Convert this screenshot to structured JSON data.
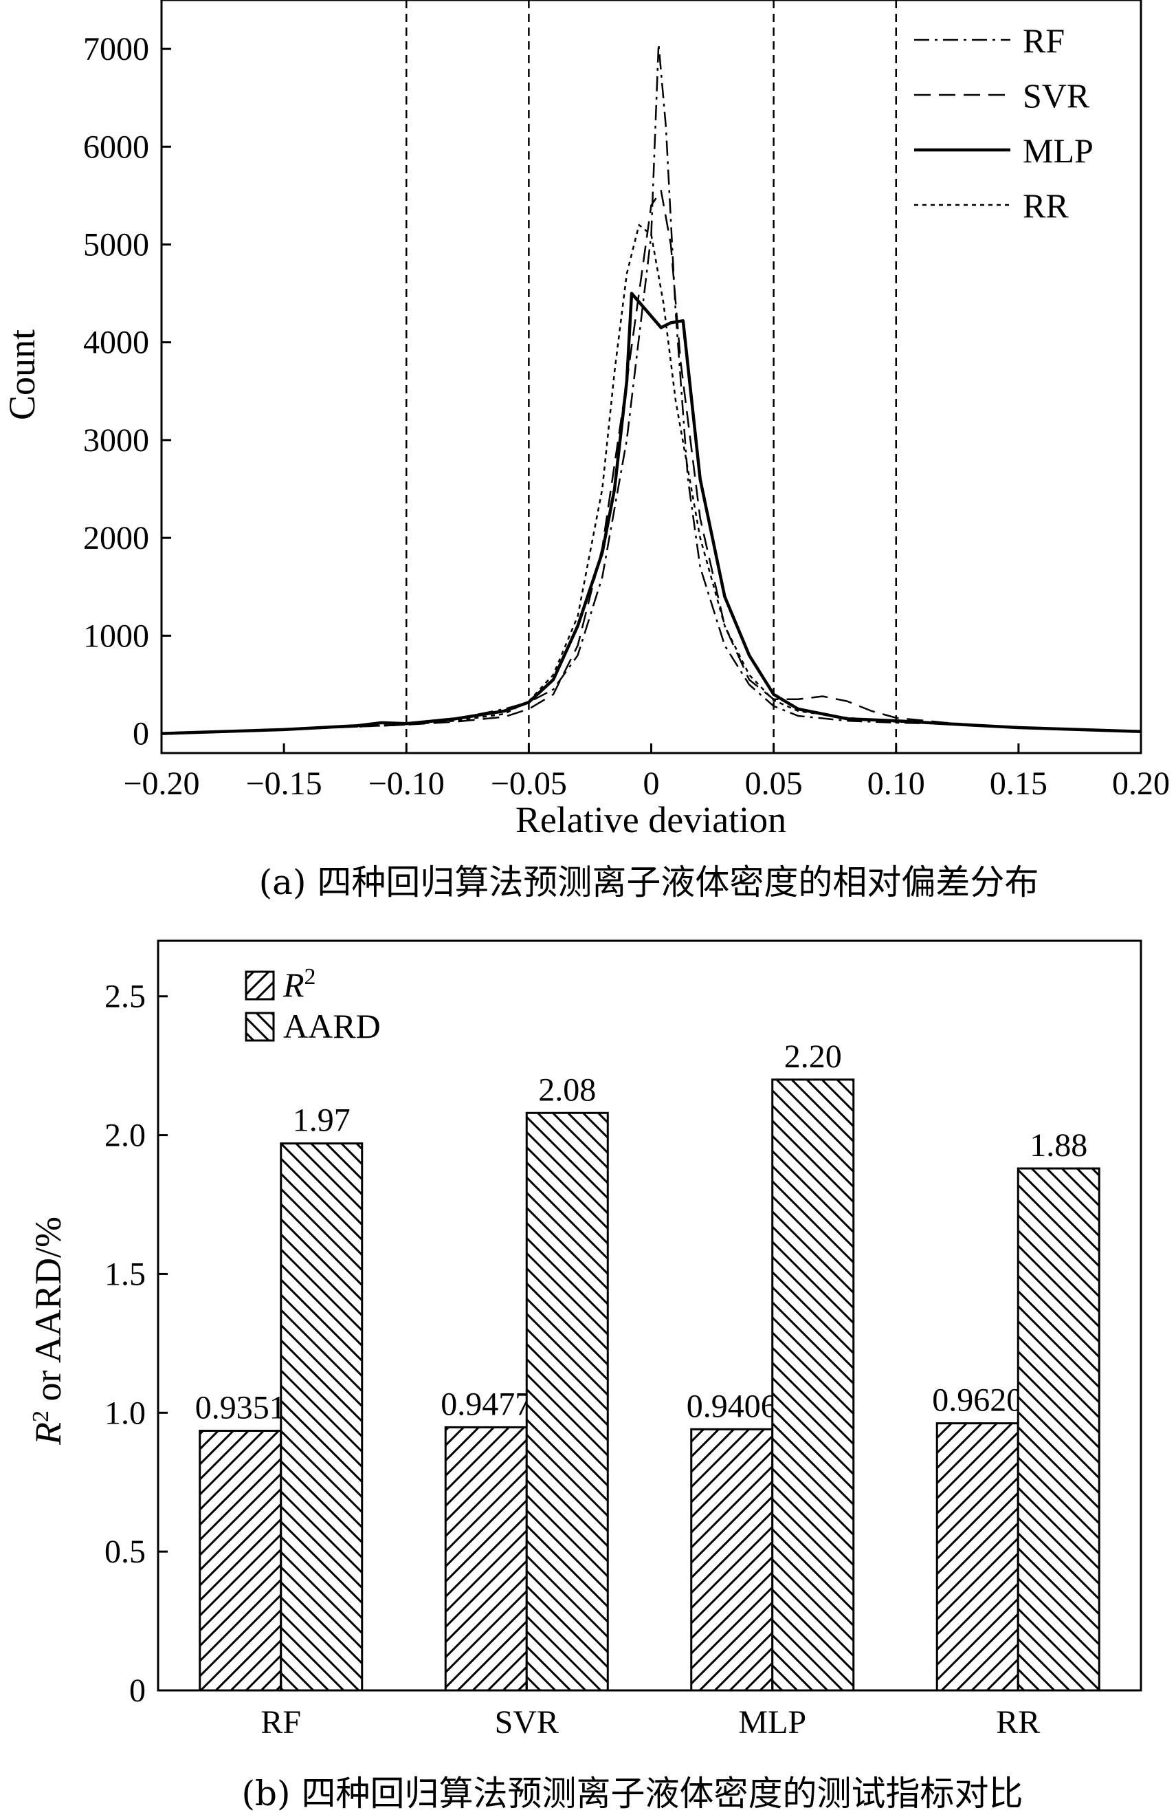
{
  "chart_data": [
    {
      "type": "line",
      "title": "",
      "xlabel": "Relative deviation",
      "ylabel": "Count",
      "xlim": [
        -0.2,
        0.2
      ],
      "ylim": [
        -200,
        7500
      ],
      "xticks": [
        -0.2,
        -0.15,
        -0.1,
        -0.05,
        0,
        0.05,
        0.1,
        0.15,
        0.2
      ],
      "xtick_labels": [
        "−0.20",
        "−0.15",
        "−0.10",
        "−0.05",
        "0",
        "0.05",
        "0.10",
        "0.15",
        "0.20"
      ],
      "yticks": [
        0,
        1000,
        2000,
        3000,
        4000,
        5000,
        6000,
        7000
      ],
      "ytick_labels": [
        "0",
        "1000",
        "2000",
        "3000",
        "4000",
        "5000",
        "6000",
        "7000"
      ],
      "vlines": [
        -0.1,
        -0.05,
        0.05,
        0.1
      ],
      "grid": false,
      "legend_position": "top-right",
      "caption": "(a) 四种回归算法预测离子液体密度的相对偏差分布",
      "series": [
        {
          "name": "RF",
          "style": "dash-dot",
          "x": [
            -0.2,
            -0.15,
            -0.12,
            -0.1,
            -0.08,
            -0.06,
            -0.05,
            -0.04,
            -0.03,
            -0.02,
            -0.01,
            0,
            0.003,
            0.006,
            0.01,
            0.015,
            0.02,
            0.03,
            0.04,
            0.05,
            0.06,
            0.08,
            0.1,
            0.12,
            0.15,
            0.2
          ],
          "y": [
            0,
            40,
            70,
            100,
            150,
            250,
            320,
            450,
            800,
            1600,
            3000,
            5100,
            7050,
            6200,
            4300,
            2600,
            1700,
            900,
            500,
            280,
            180,
            130,
            110,
            100,
            60,
            20
          ]
        },
        {
          "name": "SVR",
          "style": "dashed",
          "x": [
            -0.2,
            -0.15,
            -0.12,
            -0.1,
            -0.08,
            -0.06,
            -0.05,
            -0.04,
            -0.03,
            -0.02,
            -0.01,
            0,
            0.004,
            0.008,
            0.012,
            0.02,
            0.03,
            0.04,
            0.05,
            0.06,
            0.07,
            0.08,
            0.09,
            0.1,
            0.12,
            0.15,
            0.2
          ],
          "y": [
            0,
            40,
            70,
            90,
            120,
            170,
            250,
            400,
            900,
            1900,
            3600,
            5400,
            5550,
            5000,
            3800,
            2200,
            1100,
            550,
            350,
            350,
            380,
            330,
            230,
            160,
            110,
            60,
            20
          ]
        },
        {
          "name": "MLP",
          "style": "solid",
          "x": [
            -0.2,
            -0.15,
            -0.12,
            -0.11,
            -0.1,
            -0.08,
            -0.06,
            -0.05,
            -0.04,
            -0.03,
            -0.02,
            -0.015,
            -0.01,
            -0.008,
            0.004,
            0.008,
            0.013,
            0.02,
            0.03,
            0.04,
            0.05,
            0.06,
            0.08,
            0.1,
            0.12,
            0.15,
            0.2
          ],
          "y": [
            0,
            40,
            80,
            110,
            100,
            150,
            230,
            320,
            550,
            1100,
            1850,
            2500,
            3600,
            4500,
            4150,
            4200,
            4220,
            2600,
            1400,
            800,
            400,
            250,
            150,
            130,
            100,
            60,
            20
          ]
        },
        {
          "name": "RR",
          "style": "dotted",
          "x": [
            -0.2,
            -0.15,
            -0.12,
            -0.1,
            -0.08,
            -0.06,
            -0.05,
            -0.04,
            -0.03,
            -0.02,
            -0.015,
            -0.01,
            -0.005,
            0,
            0.005,
            0.01,
            0.02,
            0.03,
            0.04,
            0.05,
            0.06,
            0.08,
            0.1,
            0.12,
            0.15,
            0.2
          ],
          "y": [
            0,
            40,
            70,
            90,
            130,
            200,
            330,
            600,
            1200,
            2500,
            3700,
            4700,
            5200,
            5100,
            4400,
            3400,
            2000,
            1100,
            600,
            340,
            230,
            160,
            120,
            100,
            60,
            20
          ]
        }
      ]
    },
    {
      "type": "bar",
      "title": "",
      "xlabel": "",
      "ylabel_prefix": "R",
      "ylabel_sup": "2",
      "ylabel_suffix": " or AARD/%",
      "ylim": [
        0,
        2.7
      ],
      "yticks": [
        0,
        0.5,
        1.0,
        1.5,
        2.0,
        2.5
      ],
      "ytick_labels": [
        "0",
        "0.5",
        "1.0",
        "1.5",
        "2.0",
        "2.5"
      ],
      "categories": [
        "RF",
        "SVR",
        "MLP",
        "RR"
      ],
      "grid": false,
      "legend_position": "top-left",
      "caption": "(b) 四种回归算法预测离子液体密度的测试指标对比",
      "series": [
        {
          "name": "R",
          "name_sup": "2",
          "hatch": "forward",
          "values": [
            0.9351,
            0.9477,
            0.9406,
            0.962
          ],
          "labels": [
            "0.9351",
            "0.9477",
            "0.9406",
            "0.9620"
          ]
        },
        {
          "name": "AARD",
          "hatch": "backward",
          "values": [
            1.97,
            2.08,
            2.2,
            1.88
          ],
          "labels": [
            "1.97",
            "2.08",
            "2.20",
            "1.88"
          ]
        }
      ]
    }
  ]
}
